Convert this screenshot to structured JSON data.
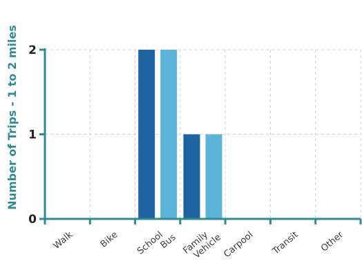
{
  "chart_data": {
    "type": "bar",
    "title": "",
    "xlabel": "",
    "ylabel": "Number of Trips - 1 to 2 miles",
    "categories": [
      [
        "Walk"
      ],
      [
        "Bike"
      ],
      [
        "School",
        "Bus"
      ],
      [
        "Family",
        "Vehicle"
      ],
      [
        "Carpool"
      ],
      [
        "Transit"
      ],
      [
        "Other"
      ]
    ],
    "series": [
      {
        "color": "#1d63a0",
        "values": [
          0,
          0,
          2,
          1,
          0,
          0,
          0
        ]
      },
      {
        "color": "#5cb3d8",
        "values": [
          0,
          0,
          2,
          1,
          0,
          0,
          0
        ]
      }
    ],
    "ylim": [
      0,
      2
    ],
    "yticks": [
      0,
      1,
      2
    ],
    "grid": true,
    "legend": "none",
    "axis_color": "#2e8b96"
  }
}
